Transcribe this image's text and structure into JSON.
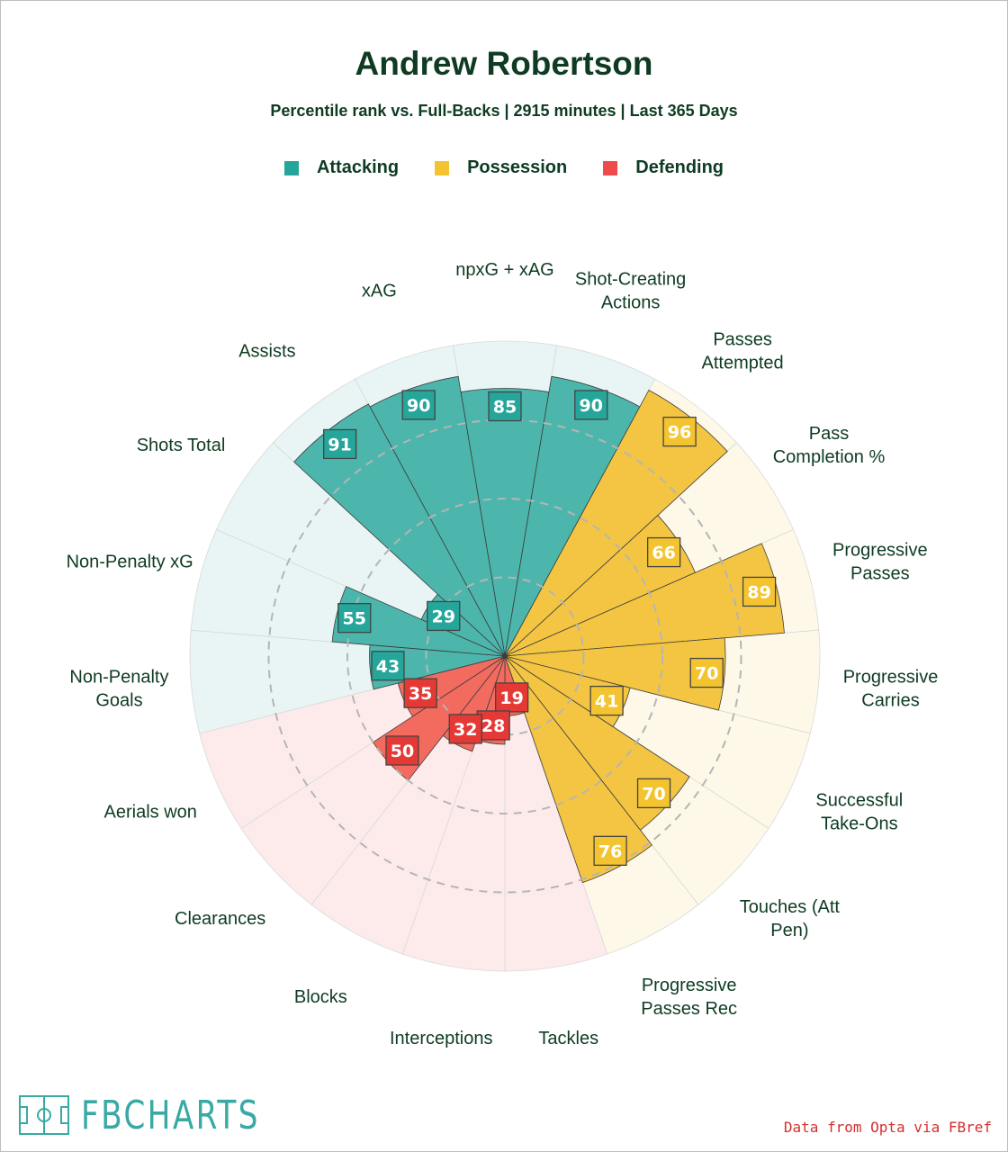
{
  "header": {
    "title": "Andrew Robertson",
    "subtitle": "Percentile rank vs. Full-Backs | 2915 minutes | Last 365 Days"
  },
  "legend": [
    {
      "label": "Attacking",
      "color": "#26a69a"
    },
    {
      "label": "Possession",
      "color": "#f4c430"
    },
    {
      "label": "Defending",
      "color": "#ef4b4b"
    }
  ],
  "footer": {
    "logo_text": "FBCHARTS",
    "source": "Data from Opta via FBref"
  },
  "chart_data": {
    "type": "polar-bar",
    "title": "Andrew Robertson",
    "subtitle": "Percentile rank vs. Full-Backs | 2915 minutes | Last 365 Days",
    "range": [
      0,
      100
    ],
    "gridlines": [
      25,
      50,
      75
    ],
    "groups": {
      "Attacking": {
        "fill": "#4db6ac",
        "label": "#26a69a",
        "background": "#e8f5f4"
      },
      "Possession": {
        "fill": "#f4c542",
        "label": "#f4c430",
        "background": "#fdf8e8"
      },
      "Defending": {
        "fill": "#f26b5e",
        "label": "#e53935",
        "background": "#fdebeb"
      }
    },
    "metrics": [
      {
        "label": "npxG + xAG",
        "value": 85,
        "group": "Attacking"
      },
      {
        "label": "Shot-Creating\nActions",
        "value": 90,
        "group": "Attacking"
      },
      {
        "label": "Passes\nAttempted",
        "value": 96,
        "group": "Possession"
      },
      {
        "label": "Pass\nCompletion %",
        "value": 66,
        "group": "Possession"
      },
      {
        "label": "Progressive\nPasses",
        "value": 89,
        "group": "Possession"
      },
      {
        "label": "Progressive\nCarries",
        "value": 70,
        "group": "Possession"
      },
      {
        "label": "Successful\nTake-Ons",
        "value": 41,
        "group": "Possession"
      },
      {
        "label": "Touches (Att\nPen)",
        "value": 70,
        "group": "Possession"
      },
      {
        "label": "Progressive\nPasses Rec",
        "value": 76,
        "group": "Possession"
      },
      {
        "label": "Tackles",
        "value": 19,
        "group": "Defending"
      },
      {
        "label": "Interceptions",
        "value": 28,
        "group": "Defending"
      },
      {
        "label": "Blocks",
        "value": 32,
        "group": "Defending"
      },
      {
        "label": "Clearances",
        "value": 50,
        "group": "Defending"
      },
      {
        "label": "Aerials won",
        "value": 35,
        "group": "Defending"
      },
      {
        "label": "Non-Penalty\nGoals",
        "value": 43,
        "group": "Attacking"
      },
      {
        "label": "Non-Penalty xG",
        "value": 55,
        "group": "Attacking"
      },
      {
        "label": "Shots Total",
        "value": 29,
        "group": "Attacking"
      },
      {
        "label": "Assists",
        "value": 91,
        "group": "Attacking"
      },
      {
        "label": "xAG",
        "value": 90,
        "group": "Attacking"
      }
    ]
  }
}
